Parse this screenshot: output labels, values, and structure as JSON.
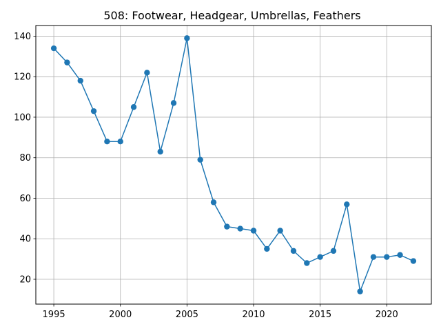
{
  "chart_data": {
    "type": "line",
    "title": "508: Footwear, Headgear, Umbrellas, Feathers",
    "xlabel": "",
    "ylabel": "",
    "x": [
      1995,
      1996,
      1997,
      1998,
      1999,
      2000,
      2001,
      2002,
      2003,
      2004,
      2005,
      2006,
      2007,
      2008,
      2009,
      2010,
      2011,
      2012,
      2013,
      2014,
      2015,
      2016,
      2017,
      2018,
      2019,
      2020,
      2021,
      2022
    ],
    "series": [
      {
        "values": [
          134,
          127,
          118,
          103,
          88,
          88,
          105,
          122,
          83,
          107,
          139,
          79,
          58,
          46,
          45,
          44,
          35,
          44,
          34,
          28,
          31,
          34,
          57,
          14,
          31,
          31,
          32,
          29
        ],
        "color": "#1f77b4"
      }
    ],
    "xticks": [
      "1995",
      "2000",
      "2005",
      "2010",
      "2015",
      "2020"
    ],
    "yticks": [
      "20",
      "40",
      "60",
      "80",
      "100",
      "120",
      "140"
    ],
    "xlim": [
      1993.65,
      2023.35
    ],
    "ylim": [
      7.75,
      145.25
    ],
    "grid": true,
    "legend": "none"
  }
}
